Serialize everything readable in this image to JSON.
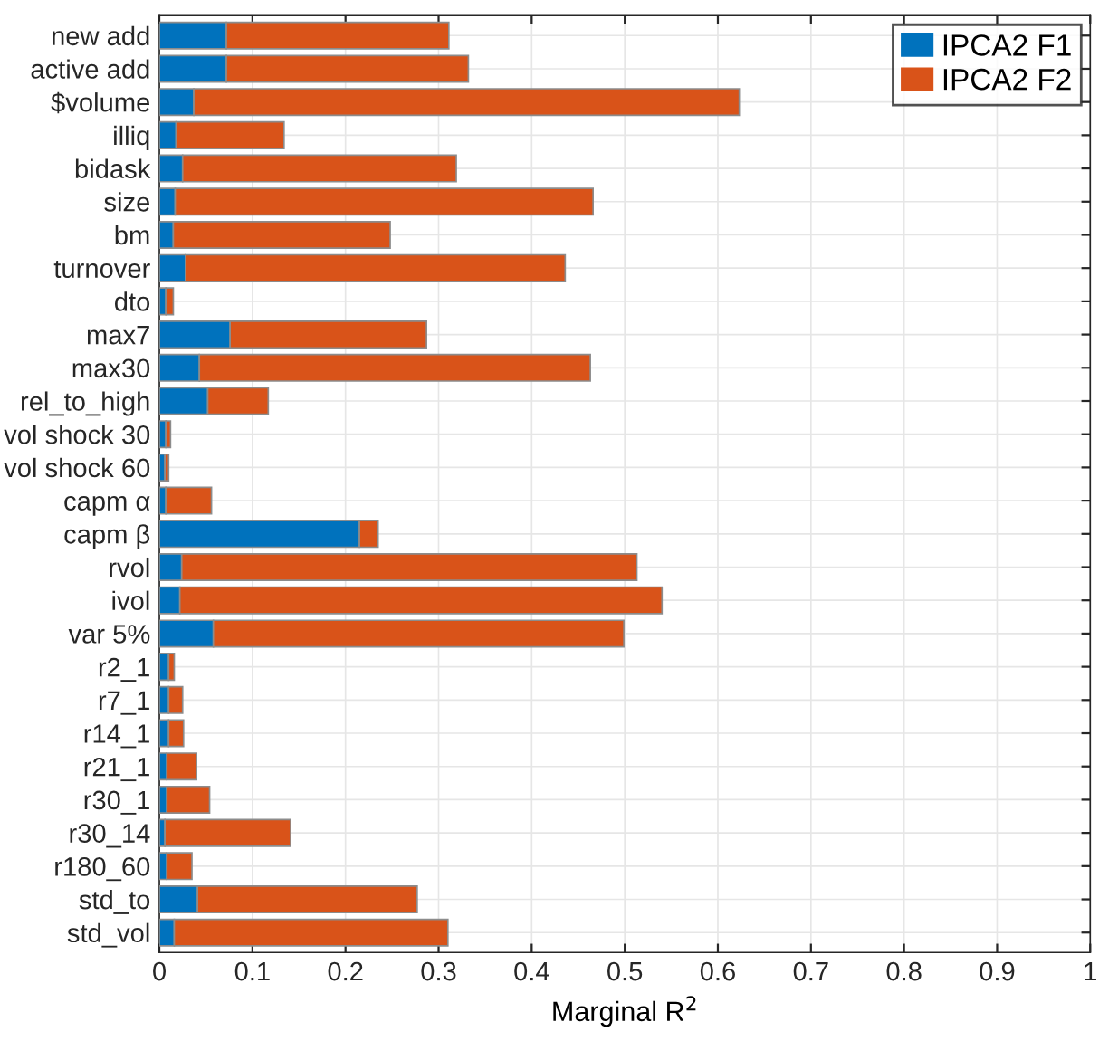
{
  "chart_data": {
    "type": "bar",
    "orientation": "horizontal",
    "stacked": true,
    "categories": [
      "new add",
      "active add",
      "$volume",
      "illiq",
      "bidask",
      "size",
      "bm",
      "turnover",
      "dto",
      "max7",
      "max30",
      "rel_to_high",
      "vol shock 30",
      "vol shock 60",
      "capm α",
      "capm β",
      "rvol",
      "ivol",
      "var 5%",
      "r2_1",
      "r7_1",
      "r14_1",
      "r21_1",
      "r30_1",
      "r30_14",
      "r180_60",
      "std_to",
      "std_vol"
    ],
    "series": [
      {
        "name": "IPCA2 F1",
        "color": "#0072bd",
        "values": [
          0.072,
          0.072,
          0.037,
          0.018,
          0.025,
          0.017,
          0.015,
          0.028,
          0.007,
          0.076,
          0.043,
          0.052,
          0.007,
          0.006,
          0.007,
          0.215,
          0.024,
          0.022,
          0.058,
          0.01,
          0.01,
          0.01,
          0.008,
          0.008,
          0.006,
          0.008,
          0.041,
          0.016
        ]
      },
      {
        "name": "IPCA2 F2",
        "color": "#d95319",
        "values": [
          0.239,
          0.26,
          0.586,
          0.116,
          0.294,
          0.449,
          0.233,
          0.408,
          0.008,
          0.211,
          0.42,
          0.065,
          0.005,
          0.004,
          0.049,
          0.02,
          0.489,
          0.518,
          0.441,
          0.006,
          0.015,
          0.016,
          0.032,
          0.046,
          0.135,
          0.027,
          0.236,
          0.294
        ]
      }
    ],
    "xlabel": "Marginal R$^{2}$",
    "xlim": [
      0,
      1
    ],
    "xticks": [
      0,
      0.1,
      0.2,
      0.3,
      0.4,
      0.5,
      0.6,
      0.7,
      0.8,
      0.9,
      1
    ],
    "grid": true,
    "legend": "top right"
  }
}
